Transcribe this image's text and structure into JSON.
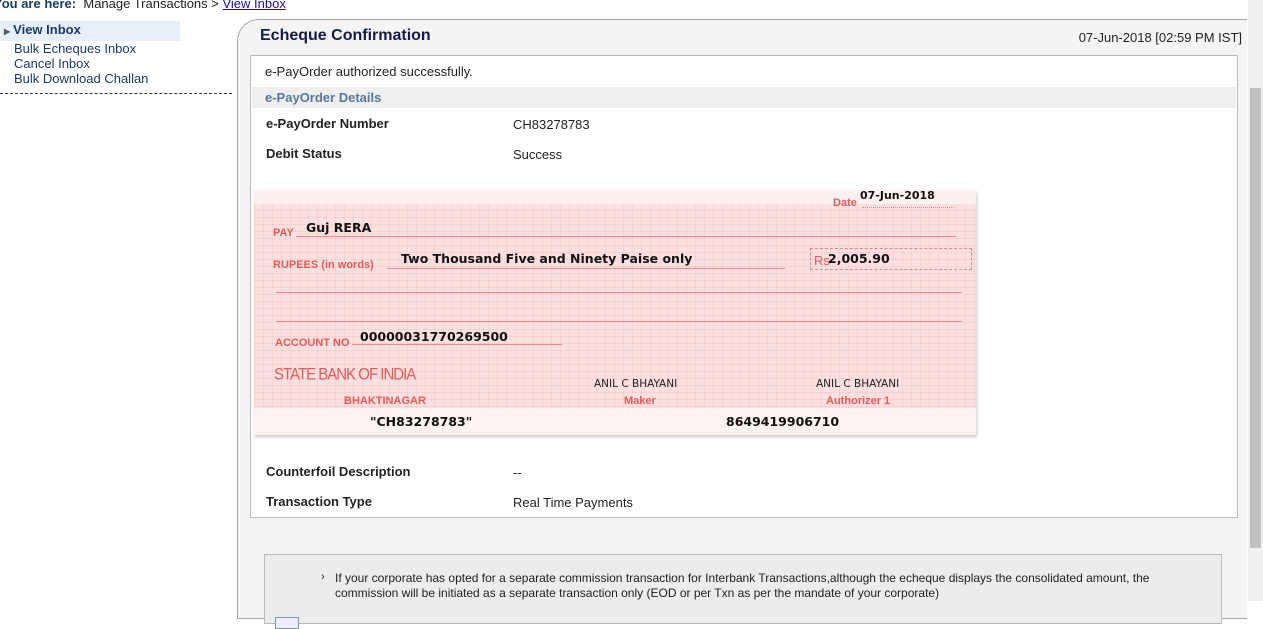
{
  "breadcrumb": {
    "label": "You are here:",
    "path": "Manage Transactions >",
    "current": "View Inbox"
  },
  "sidebar": {
    "items": [
      {
        "label": "View Inbox",
        "selected": true
      },
      {
        "label": "Bulk Echeques Inbox"
      },
      {
        "label": "Cancel Inbox"
      },
      {
        "label": "Bulk Download Challan"
      }
    ]
  },
  "panel": {
    "title": "Echeque Confirmation",
    "timestamp": "07-Jun-2018 [02:59 PM IST]",
    "message": "e-PayOrder authorized successfully.",
    "section": "e-PayOrder Details",
    "fields": [
      {
        "label": "e-PayOrder Number",
        "value": "CH83278783"
      },
      {
        "label": "Debit Status",
        "value": "Success"
      }
    ],
    "fields2": [
      {
        "label": "Counterfoil Description",
        "value": "--"
      },
      {
        "label": "Transaction Type",
        "value": "Real Time Payments"
      }
    ]
  },
  "cheque": {
    "date_label": "Date",
    "date": "07-Jun-2018",
    "pay_label": "PAY",
    "payee": "Guj RERA",
    "rupees_label": "RUPEES (in words)",
    "amount_words": "Two Thousand Five and Ninety Paise only",
    "rs_label": "Rs",
    "amount": "2,005.90",
    "account_label": "ACCOUNT NO",
    "account": "00000031770269500",
    "bank": "STATE BANK OF INDIA",
    "branch": "BHAKTINAGAR",
    "maker_name": "ANIL C BHAYANI",
    "maker_label": "Maker",
    "auth_name": "ANIL C BHAYANI",
    "auth_label": "Authorizer 1",
    "cheque_no": "\"CH83278783\"",
    "micr": "8649419906710"
  },
  "note": "If your corporate has opted for a separate commission transaction for Interbank Transactions,although the echeque displays the consolidated amount, the commission will be initiated as a separate transaction only (EOD or per Txn as per the mandate of your corporate)",
  "colors": {
    "cheque_bg": "#fbe0e0",
    "cheque_label": "#e35a5a",
    "title": "#111b4a"
  }
}
